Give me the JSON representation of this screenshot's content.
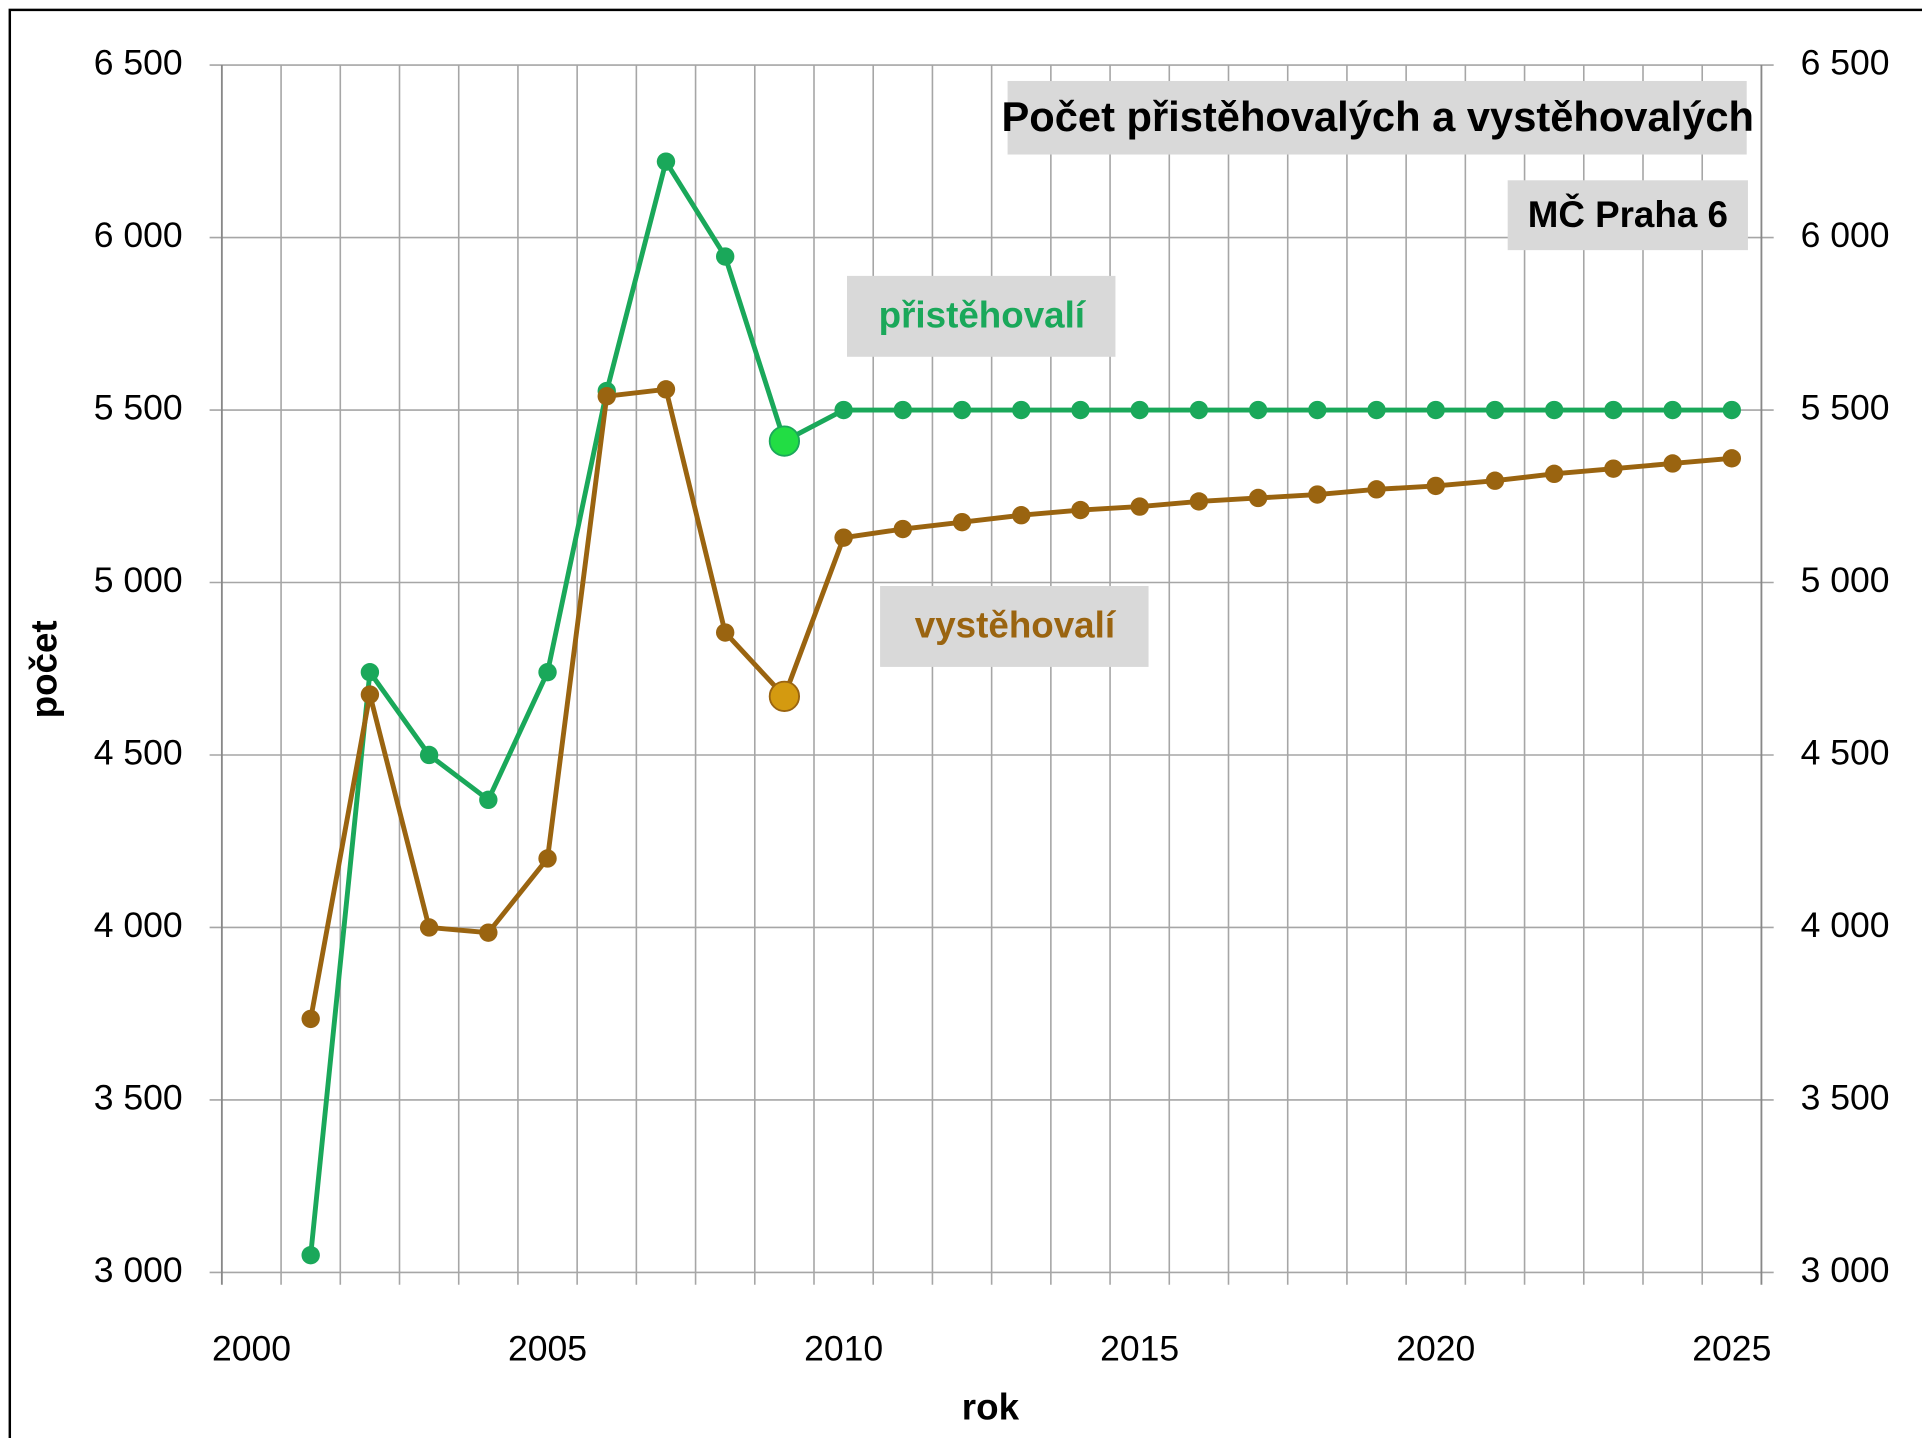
{
  "chart_data": {
    "type": "line",
    "title": "Počet přistěhovalých a vystěhovalých",
    "subtitle": "MČ Praha 6",
    "x_label": "rok",
    "y_label": "počet",
    "x": [
      2001,
      2002,
      2003,
      2004,
      2005,
      2006,
      2007,
      2008,
      2009,
      2010,
      2011,
      2012,
      2013,
      2014,
      2015,
      2016,
      2017,
      2018,
      2019,
      2020,
      2021,
      2022,
      2023,
      2024,
      2025
    ],
    "series": [
      {
        "name": "přistěhovalí",
        "color": "#1aa85a",
        "highlight_color": "#22dd44",
        "values": [
          3050,
          4740,
          4500,
          4370,
          4740,
          5555,
          6220,
          5945,
          5410,
          5500,
          5500,
          5500,
          5500,
          5500,
          5500,
          5500,
          5500,
          5500,
          5500,
          5500,
          5500,
          5500,
          5500,
          5500,
          5500
        ]
      },
      {
        "name": "vystěhovalí",
        "color": "#9a6410",
        "highlight_color": "#d49a10",
        "values": [
          3735,
          4675,
          4000,
          3985,
          4200,
          5540,
          5560,
          4855,
          4670,
          5130,
          5155,
          5175,
          5195,
          5210,
          5220,
          5235,
          5245,
          5255,
          5270,
          5280,
          5295,
          5315,
          5330,
          5345,
          5360
        ]
      }
    ],
    "highlight_x": 2009,
    "xlim": [
      1999.5,
      2025.5
    ],
    "xticks": [
      2000,
      2005,
      2010,
      2015,
      2020,
      2025
    ],
    "ylim": [
      3000,
      6500
    ],
    "yticks": [
      {
        "value": 3000,
        "label": "3 000"
      },
      {
        "value": 3500,
        "label": "3 500"
      },
      {
        "value": 4000,
        "label": "4 000"
      },
      {
        "value": 4500,
        "label": "4 500"
      },
      {
        "value": 5000,
        "label": "5 000"
      },
      {
        "value": 5500,
        "label": "5 500"
      },
      {
        "value": 6000,
        "label": "6 000"
      },
      {
        "value": 6500,
        "label": "6 500"
      }
    ],
    "grid": true
  }
}
